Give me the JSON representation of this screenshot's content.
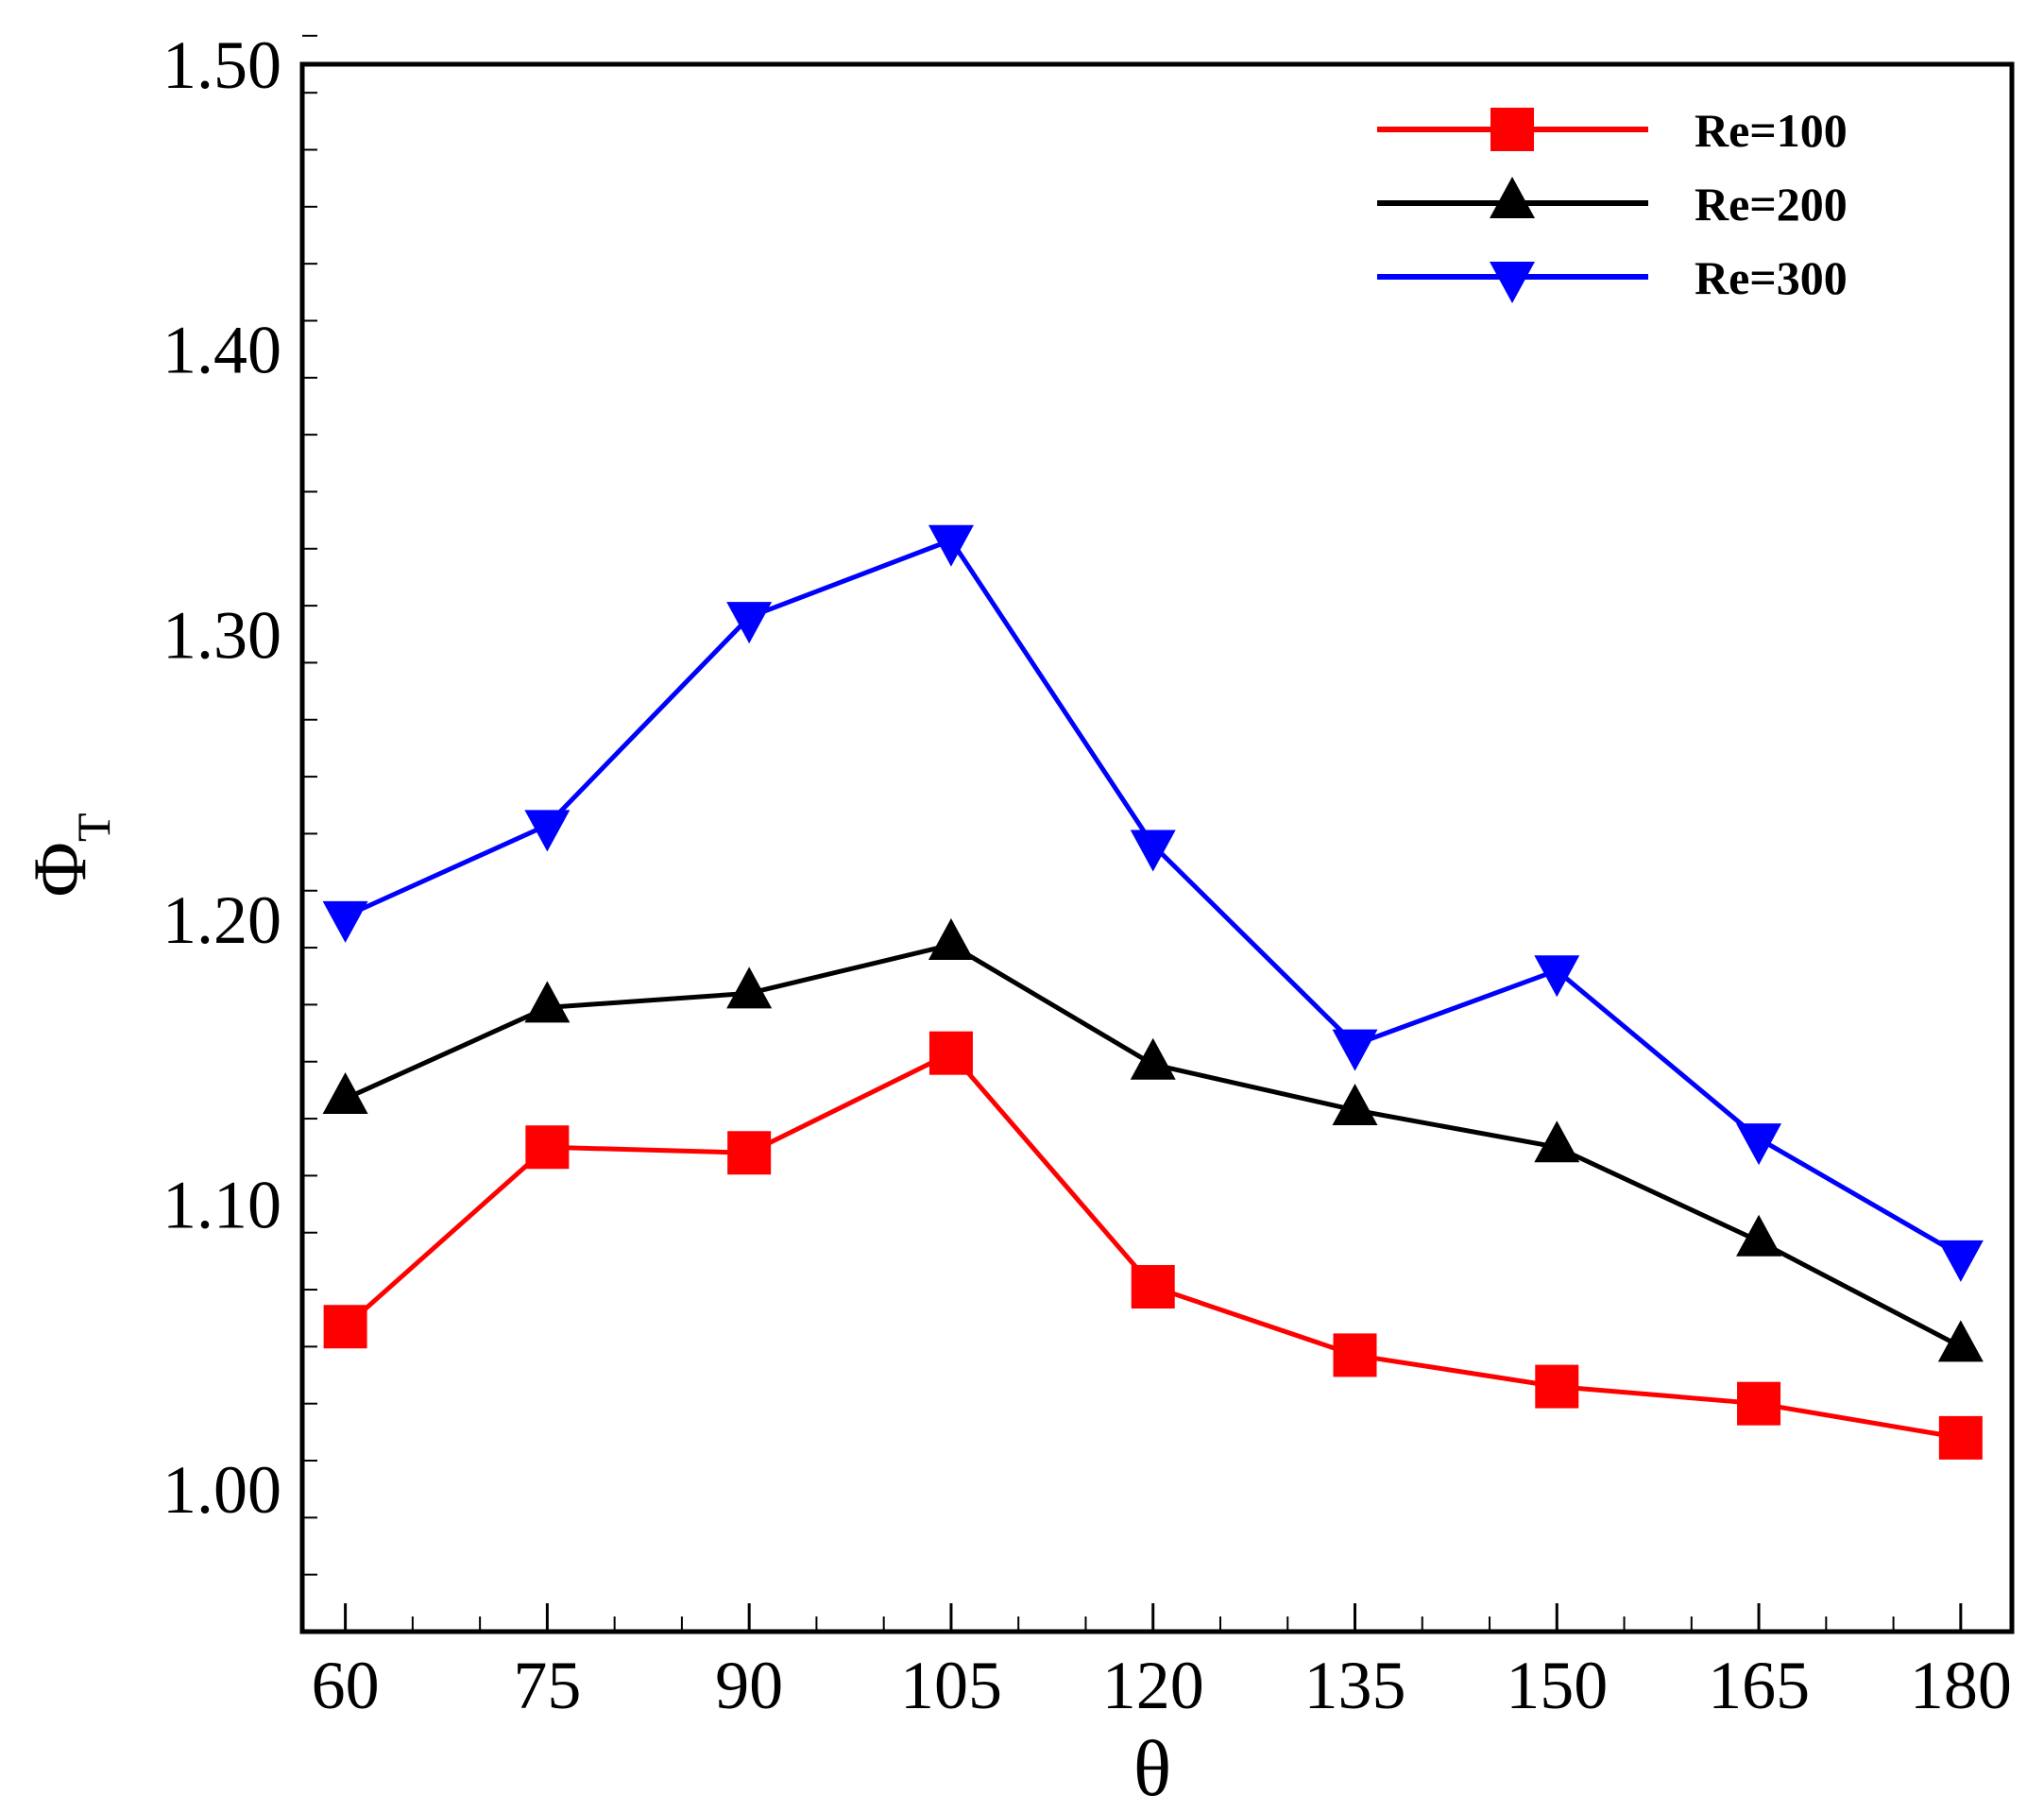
{
  "chart_data": {
    "type": "line",
    "title": "",
    "xlabel": "θ",
    "ylabel_main": "Φ",
    "ylabel_sub": "T",
    "xlim": [
      56.8,
      183.8
    ],
    "ylim": [
      0.95,
      1.5
    ],
    "x": [
      60,
      75,
      90,
      105,
      120,
      135,
      150,
      165,
      180
    ],
    "x_ticks": [
      60,
      75,
      90,
      105,
      120,
      135,
      150,
      165,
      180
    ],
    "x_tick_labels": [
      "60",
      "75",
      "90",
      "105",
      "120",
      "135",
      "150",
      "165",
      "180"
    ],
    "y_ticks": [
      1.0,
      1.1,
      1.2,
      1.3,
      1.4,
      1.5
    ],
    "y_tick_labels": [
      "1.00",
      "1.10",
      "1.20",
      "1.30",
      "1.40",
      "1.50"
    ],
    "y_minor_step": 0.02,
    "x_minor_step": 5,
    "grid": false,
    "legend_position": "top-right",
    "series": [
      {
        "name": "Re=100",
        "color": "#ff0000",
        "marker": "square",
        "values": [
          1.057,
          1.12,
          1.118,
          1.153,
          1.071,
          1.047,
          1.036,
          1.03,
          1.018
        ]
      },
      {
        "name": "Re=200",
        "color": "#000000",
        "marker": "triangle-up",
        "values": [
          1.137,
          1.169,
          1.174,
          1.191,
          1.149,
          1.133,
          1.12,
          1.087,
          1.05
        ]
      },
      {
        "name": "Re=300",
        "color": "#0000ff",
        "marker": "triangle-down",
        "values": [
          1.201,
          1.233,
          1.306,
          1.333,
          1.226,
          1.156,
          1.182,
          1.123,
          1.082
        ]
      }
    ]
  }
}
